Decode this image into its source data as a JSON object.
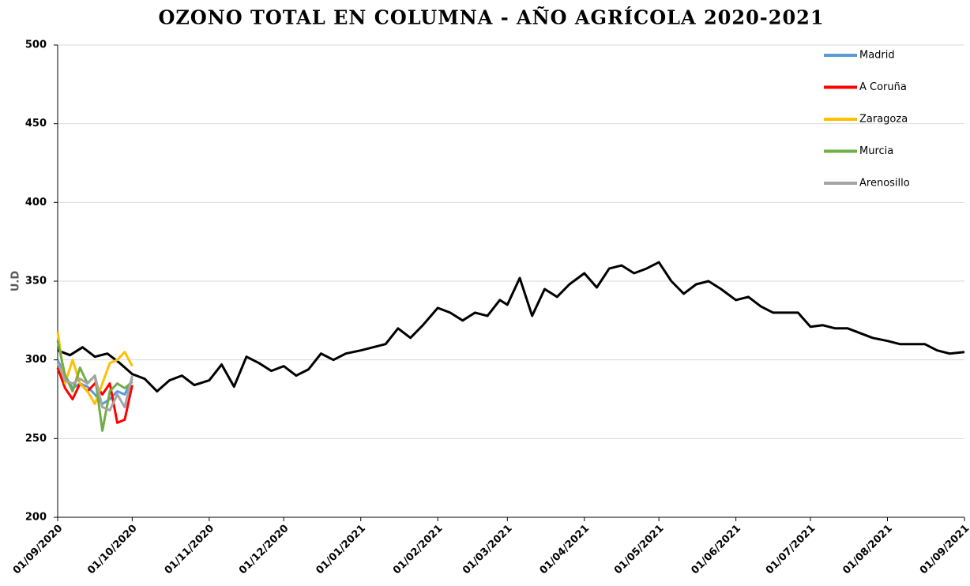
{
  "chart_data": {
    "type": "line",
    "title": "OZONO TOTAL EN COLUMNA - AÑO AGRÍCOLA 2020-2021",
    "y_label": "U.D",
    "xlim": [
      "01/09/2020",
      "01/09/2021"
    ],
    "xticks": [
      "01/09/2020",
      "01/10/2020",
      "01/11/2020",
      "01/12/2020",
      "01/01/2021",
      "01/02/2021",
      "01/03/2021",
      "01/04/2021",
      "01/05/2021",
      "01/06/2021",
      "01/07/2021",
      "01/08/2021",
      "01/09/2021"
    ],
    "ylim": [
      200,
      500
    ],
    "yticks": [
      200,
      250,
      300,
      350,
      400,
      450,
      500
    ],
    "grid": true,
    "legend": "upper right",
    "series": [
      {
        "color": "#000000",
        "x": [
          "01/09/2020",
          "06/09/2020",
          "11/09/2020",
          "16/09/2020",
          "21/09/2020",
          "26/09/2020",
          "01/10/2020",
          "06/10/2020",
          "11/10/2020",
          "16/10/2020",
          "21/10/2020",
          "26/10/2020",
          "01/11/2020",
          "06/11/2020",
          "11/11/2020",
          "16/11/2020",
          "21/11/2020",
          "26/11/2020",
          "01/12/2020",
          "06/12/2020",
          "11/12/2020",
          "16/12/2020",
          "21/12/2020",
          "26/12/2020",
          "01/01/2021",
          "06/01/2021",
          "11/01/2021",
          "16/01/2021",
          "21/01/2021",
          "26/01/2021",
          "01/02/2021",
          "06/02/2021",
          "11/02/2021",
          "16/02/2021",
          "21/02/2021",
          "26/02/2021",
          "01/03/2021",
          "06/03/2021",
          "11/03/2021",
          "16/03/2021",
          "21/03/2021",
          "26/03/2021",
          "01/04/2021",
          "06/04/2021",
          "11/04/2021",
          "16/04/2021",
          "21/04/2021",
          "26/04/2021",
          "01/05/2021",
          "06/05/2021",
          "11/05/2021",
          "16/05/2021",
          "21/05/2021",
          "26/05/2021",
          "01/06/2021",
          "06/06/2021",
          "11/06/2021",
          "16/06/2021",
          "21/06/2021",
          "26/06/2021",
          "01/07/2021",
          "06/07/2021",
          "11/07/2021",
          "16/07/2021",
          "21/07/2021",
          "26/07/2021",
          "01/08/2021",
          "06/08/2021",
          "11/08/2021",
          "16/08/2021",
          "21/08/2021",
          "26/08/2021",
          "01/09/2021"
        ],
        "values": [
          306,
          303,
          308,
          302,
          304,
          298,
          291,
          288,
          280,
          287,
          290,
          284,
          287,
          297,
          283,
          302,
          298,
          293,
          296,
          290,
          294,
          304,
          300,
          304,
          306,
          308,
          310,
          320,
          314,
          322,
          333,
          330,
          325,
          330,
          328,
          338,
          335,
          352,
          328,
          345,
          340,
          348,
          355,
          346,
          358,
          360,
          355,
          358,
          362,
          350,
          342,
          348,
          350,
          345,
          338,
          340,
          334,
          330,
          330,
          330,
          321,
          322,
          320,
          320,
          317,
          314,
          312,
          310,
          310,
          310,
          306,
          304,
          305
        ]
      },
      {
        "name": "Madrid",
        "color": "#5b9bd5",
        "x": [
          "01/09/2020",
          "04/09/2020",
          "07/09/2020",
          "10/09/2020",
          "13/09/2020",
          "16/09/2020",
          "19/09/2020",
          "22/09/2020",
          "25/09/2020",
          "28/09/2020",
          "01/10/2020"
        ],
        "values": [
          300,
          290,
          282,
          285,
          283,
          278,
          272,
          275,
          280,
          278,
          288
        ]
      },
      {
        "name": "A Coruña",
        "color": "#ff0000",
        "x": [
          "01/09/2020",
          "04/09/2020",
          "07/09/2020",
          "10/09/2020",
          "13/09/2020",
          "16/09/2020",
          "19/09/2020",
          "22/09/2020",
          "25/09/2020",
          "28/09/2020",
          "01/10/2020"
        ],
        "values": [
          295,
          282,
          275,
          285,
          280,
          285,
          278,
          285,
          260,
          262,
          284
        ]
      },
      {
        "name": "Zaragoza",
        "color": "#ffc000",
        "x": [
          "01/09/2020",
          "04/09/2020",
          "07/09/2020",
          "10/09/2020",
          "13/09/2020",
          "16/09/2020",
          "19/09/2020",
          "22/09/2020",
          "25/09/2020",
          "28/09/2020",
          "01/10/2020"
        ],
        "values": [
          318,
          285,
          300,
          285,
          280,
          272,
          285,
          298,
          300,
          305,
          296
        ]
      },
      {
        "name": "Murcia",
        "color": "#70ad47",
        "x": [
          "01/09/2020",
          "04/09/2020",
          "07/09/2020",
          "10/09/2020",
          "13/09/2020",
          "16/09/2020",
          "19/09/2020",
          "22/09/2020",
          "25/09/2020",
          "28/09/2020",
          "01/10/2020"
        ],
        "values": [
          312,
          290,
          280,
          295,
          285,
          290,
          255,
          280,
          285,
          282,
          286
        ]
      },
      {
        "name": "Arenosillo",
        "color": "#a5a5a5",
        "x": [
          "01/09/2020",
          "04/09/2020",
          "07/09/2020",
          "10/09/2020",
          "13/09/2020",
          "16/09/2020",
          "19/09/2020",
          "22/09/2020",
          "25/09/2020",
          "28/09/2020",
          "01/10/2020"
        ],
        "values": [
          298,
          287,
          285,
          288,
          285,
          290,
          270,
          268,
          278,
          270,
          290
        ]
      }
    ]
  }
}
